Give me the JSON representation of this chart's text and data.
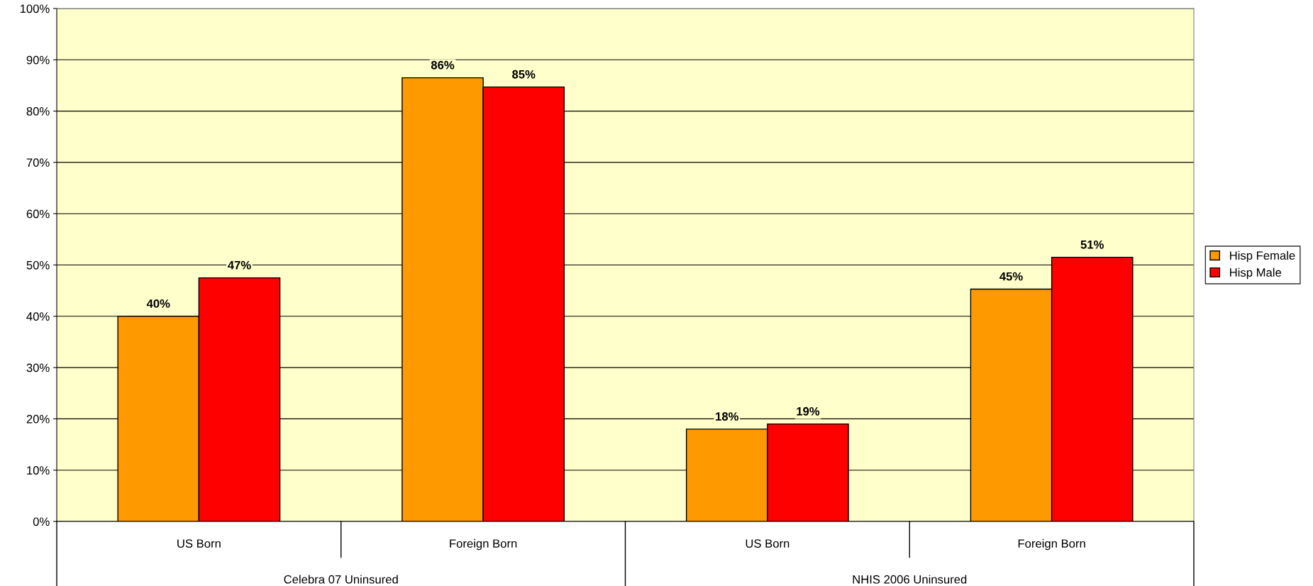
{
  "chart_data": {
    "type": "bar",
    "categories": [
      "US Born",
      "Foreign Born",
      "US Born",
      "Foreign Born"
    ],
    "series": [
      {
        "name": "Hisp Female",
        "color": "#ff9900",
        "values": [
          40,
          86.5,
          18,
          45.3
        ],
        "value_labels": [
          "40%",
          "86%",
          "18%",
          "45%"
        ]
      },
      {
        "name": "Hisp Male",
        "color": "#ff0000",
        "values": [
          47.5,
          84.7,
          19,
          51.5
        ],
        "value_labels": [
          "47%",
          "85%",
          "19%",
          "51%"
        ]
      }
    ],
    "ylim": [
      0,
      100
    ],
    "yticks": [
      {
        "value": 0,
        "label": "0%"
      },
      {
        "value": 10,
        "label": "10%"
      },
      {
        "value": 20,
        "label": "20%"
      },
      {
        "value": 30,
        "label": "30%"
      },
      {
        "value": 40,
        "label": "40%"
      },
      {
        "value": 50,
        "label": "50%"
      },
      {
        "value": 60,
        "label": "60%"
      },
      {
        "value": 70,
        "label": "70%"
      },
      {
        "value": 80,
        "label": "80%"
      },
      {
        "value": 90,
        "label": "90%"
      },
      {
        "value": 100,
        "label": "100%"
      }
    ],
    "grid": "y",
    "legend": "right",
    "annotations": [
      "Celebra 07 Uninsured",
      "NHIS 2006 Uninsured"
    ]
  }
}
